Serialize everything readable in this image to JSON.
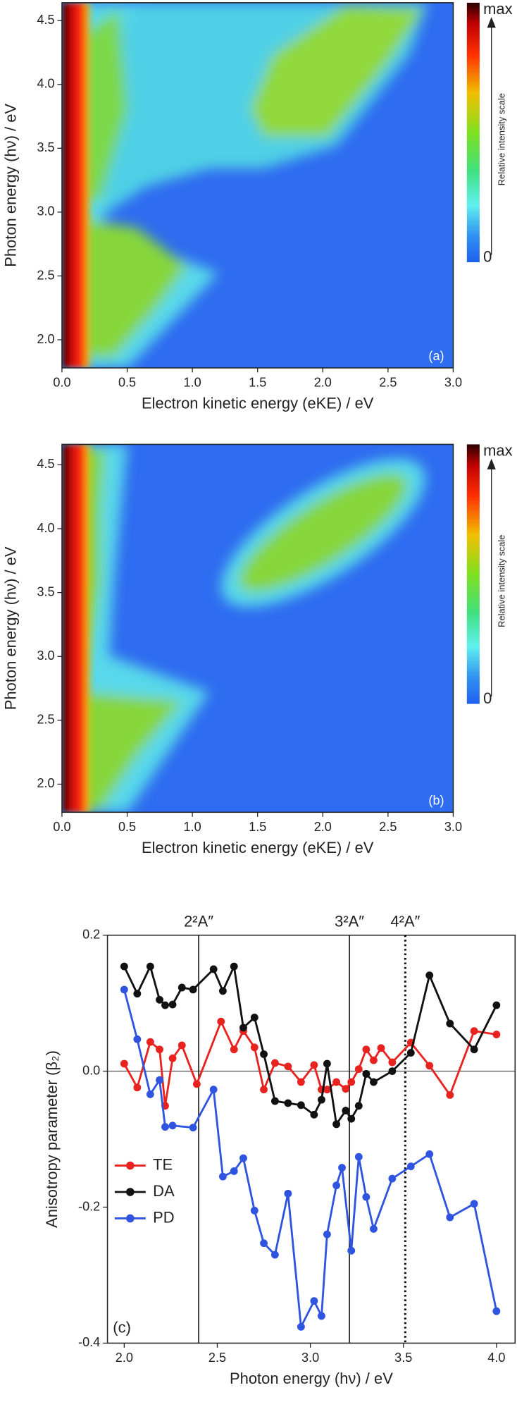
{
  "chart_data": [
    {
      "type": "heatmap",
      "panel_label": "(a)",
      "xlabel": "Electron kinetic energy (eKE) / eV",
      "ylabel": "Photon energy (hν) / eV",
      "xlim": [
        0,
        3.0
      ],
      "ylim": [
        1.78,
        4.64
      ],
      "xticks": [
        {
          "value": 0,
          "label": "0.0"
        },
        0.5,
        {
          "value": 1,
          "label": "1.0"
        },
        1.5,
        {
          "value": 2,
          "label": "2.0"
        },
        2.5,
        {
          "value": 3,
          "label": "3.0"
        }
      ],
      "yticks": [
        {
          "value": 2,
          "label": "2.0"
        },
        2.5,
        {
          "value": 3,
          "label": "3.0"
        },
        3.5,
        {
          "value": 4,
          "label": "4.0"
        },
        4.5
      ],
      "colorbar": {
        "label": "Relative intensity scale",
        "max_label": "max",
        "min_label": "0"
      }
    },
    {
      "type": "heatmap",
      "panel_label": "(b)",
      "xlabel": "Electron kinetic energy (eKE) / eV",
      "ylabel": "Photon energy (hν) / eV",
      "xlim": [
        0,
        3.0
      ],
      "ylim": [
        1.78,
        4.66
      ],
      "xticks": [
        {
          "value": 0,
          "label": "0.0"
        },
        0.5,
        {
          "value": 1,
          "label": "1.0"
        },
        1.5,
        {
          "value": 2,
          "label": "2.0"
        },
        2.5,
        {
          "value": 3,
          "label": "3.0"
        }
      ],
      "yticks": [
        {
          "value": 2,
          "label": "2.0"
        },
        2.5,
        {
          "value": 3,
          "label": "3.0"
        },
        3.5,
        {
          "value": 4,
          "label": "4.0"
        },
        4.5
      ],
      "colorbar": {
        "label": "Relative intensity scale",
        "max_label": "max",
        "min_label": "0"
      }
    },
    {
      "type": "line",
      "panel_label": "(c)",
      "xlabel": "Photon energy (hν) / eV",
      "ylabel": "Anisotropy parameter (β₂)",
      "xlim": [
        1.91,
        4.1
      ],
      "ylim": [
        -0.4,
        0.2
      ],
      "xticks": [
        {
          "value": 2,
          "label": "2.0"
        },
        2.5,
        {
          "value": 3,
          "label": "3.0"
        },
        3.5,
        {
          "value": 4,
          "label": "4.0"
        }
      ],
      "yticks": [
        -0.4,
        -0.2,
        {
          "value": 0,
          "label": "0.0"
        },
        0.2
      ],
      "zero_line": true,
      "legend": "lower left",
      "annotations": [
        {
          "label": "2²A″",
          "x": 2.4,
          "style": "solid"
        },
        {
          "label": "3²A″",
          "x": 3.21,
          "style": "solid"
        },
        {
          "label": "4²A″",
          "x": 3.51,
          "style": "dotted"
        }
      ],
      "series": [
        {
          "name": "TE",
          "color": "#e8221e",
          "x": [
            2.0,
            2.07,
            2.14,
            2.19,
            2.22,
            2.26,
            2.31,
            2.39,
            2.52,
            2.59,
            2.64,
            2.7,
            2.75,
            2.81,
            2.88,
            2.95,
            3.02,
            3.06,
            3.09,
            3.14,
            3.19,
            3.22,
            3.26,
            3.3,
            3.34,
            3.38,
            3.44,
            3.54,
            3.64,
            3.75,
            3.88,
            4.0
          ],
          "values": [
            0.011,
            -0.024,
            0.043,
            0.032,
            -0.051,
            0.019,
            0.038,
            -0.019,
            0.073,
            0.032,
            0.059,
            0.035,
            -0.027,
            0.012,
            0.007,
            -0.016,
            0.009,
            -0.027,
            -0.027,
            -0.016,
            -0.026,
            -0.016,
            0.003,
            0.032,
            0.016,
            0.034,
            0.013,
            0.042,
            0.008,
            -0.035,
            0.059,
            0.054
          ]
        },
        {
          "name": "DA",
          "color": "#111111",
          "x": [
            2.0,
            2.07,
            2.14,
            2.19,
            2.22,
            2.26,
            2.31,
            2.37,
            2.48,
            2.53,
            2.59,
            2.64,
            2.7,
            2.75,
            2.81,
            2.88,
            2.95,
            3.02,
            3.06,
            3.09,
            3.14,
            3.19,
            3.22,
            3.26,
            3.3,
            3.34,
            3.44,
            3.54,
            3.64,
            3.75,
            3.88,
            4.0
          ],
          "values": [
            0.154,
            0.114,
            0.154,
            0.105,
            0.097,
            0.098,
            0.123,
            0.12,
            0.15,
            0.118,
            0.154,
            0.064,
            0.079,
            0.025,
            -0.044,
            -0.047,
            -0.05,
            -0.064,
            -0.042,
            0.011,
            -0.078,
            -0.058,
            -0.07,
            -0.051,
            -0.004,
            -0.016,
            0.0,
            0.027,
            0.141,
            0.07,
            0.032,
            0.097
          ]
        },
        {
          "name": "PD",
          "color": "#2f55e0",
          "x": [
            2.0,
            2.07,
            2.14,
            2.19,
            2.22,
            2.26,
            2.37,
            2.48,
            2.53,
            2.59,
            2.64,
            2.7,
            2.75,
            2.81,
            2.88,
            2.95,
            3.02,
            3.06,
            3.09,
            3.14,
            3.17,
            3.22,
            3.26,
            3.3,
            3.34,
            3.44,
            3.54,
            3.64,
            3.75,
            3.88,
            4.0
          ],
          "values": [
            0.12,
            0.047,
            -0.034,
            -0.013,
            -0.082,
            -0.08,
            -0.083,
            -0.027,
            -0.155,
            -0.147,
            -0.128,
            -0.205,
            -0.253,
            -0.27,
            -0.18,
            -0.376,
            -0.338,
            -0.36,
            -0.24,
            -0.168,
            -0.142,
            -0.264,
            -0.126,
            -0.185,
            -0.232,
            -0.158,
            -0.14,
            -0.122,
            -0.215,
            -0.195,
            -0.353
          ]
        }
      ]
    }
  ]
}
